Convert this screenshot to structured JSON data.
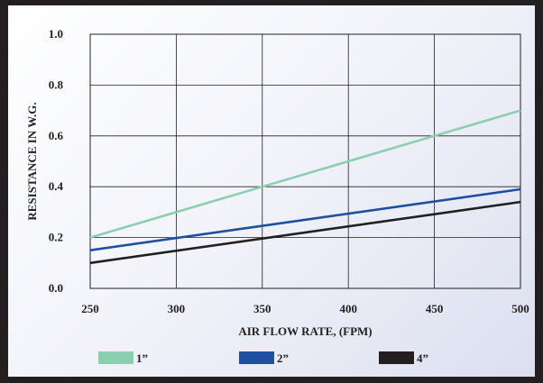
{
  "colors": {
    "background": "#231f20",
    "grid": "#231f20"
  },
  "chart_data": {
    "type": "line",
    "title": "",
    "xlabel": "AIR FLOW RATE, (FPM)",
    "ylabel": "RESISTANCE IN W.G.",
    "xlim": [
      250,
      500
    ],
    "ylim": [
      0.0,
      1.0
    ],
    "xticks": [
      250,
      300,
      350,
      400,
      450,
      500
    ],
    "yticks": [
      "0.0",
      "0.2",
      "0.4",
      "0.6",
      "0.8",
      "1.0"
    ],
    "grid": true,
    "legend_position": "bottom",
    "series": [
      {
        "name": "1”",
        "color": "#8ccfb0",
        "x": [
          250,
          500
        ],
        "y": [
          0.2,
          0.7
        ]
      },
      {
        "name": "2”",
        "color": "#1f4fa0",
        "x": [
          250,
          500
        ],
        "y": [
          0.15,
          0.39
        ]
      },
      {
        "name": "4”",
        "color": "#231f20",
        "x": [
          250,
          500
        ],
        "y": [
          0.1,
          0.34
        ]
      }
    ]
  }
}
